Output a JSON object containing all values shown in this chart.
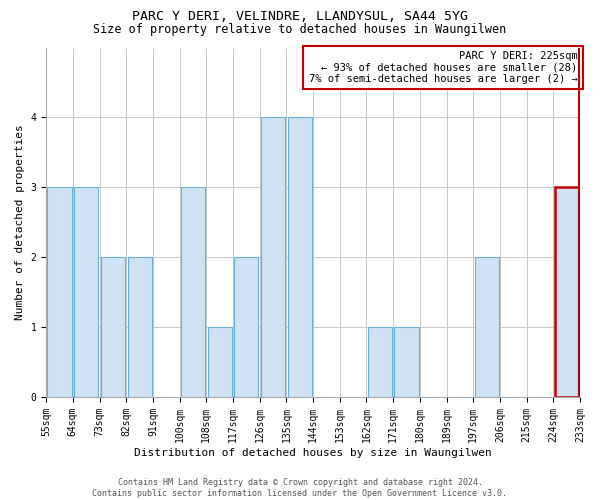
{
  "title": "PARC Y DERI, VELINDRE, LLANDYSUL, SA44 5YG",
  "subtitle": "Size of property relative to detached houses in Waungilwen",
  "xlabel": "Distribution of detached houses by size in Waungilwen",
  "ylabel": "Number of detached properties",
  "bin_labels": [
    "55sqm",
    "64sqm",
    "73sqm",
    "82sqm",
    "91sqm",
    "100sqm",
    "108sqm",
    "117sqm",
    "126sqm",
    "135sqm",
    "144sqm",
    "153sqm",
    "162sqm",
    "171sqm",
    "180sqm",
    "189sqm",
    "197sqm",
    "206sqm",
    "215sqm",
    "224sqm",
    "233sqm"
  ],
  "values": [
    3,
    3,
    2,
    2,
    0,
    3,
    1,
    2,
    4,
    4,
    0,
    0,
    1,
    1,
    0,
    0,
    2,
    0,
    0,
    3
  ],
  "bar_color": "#cfe2f3",
  "bar_edge_color": "#6baed6",
  "highlight_bar_index": 19,
  "highlight_edge_color": "#c00000",
  "annotation_text": "PARC Y DERI: 225sqm\n← 93% of detached houses are smaller (28)\n7% of semi-detached houses are larger (2) →",
  "annotation_box_color": "#c00000",
  "ylim": [
    0,
    5
  ],
  "yticks": [
    0,
    1,
    2,
    3,
    4,
    5
  ],
  "footer": "Contains HM Land Registry data © Crown copyright and database right 2024.\nContains public sector information licensed under the Open Government Licence v3.0.",
  "bg_color": "#ffffff",
  "grid_color": "#c8c8c8",
  "title_fontsize": 9.5,
  "subtitle_fontsize": 8.5,
  "axis_fontsize": 8,
  "tick_fontsize": 7,
  "footer_fontsize": 6
}
